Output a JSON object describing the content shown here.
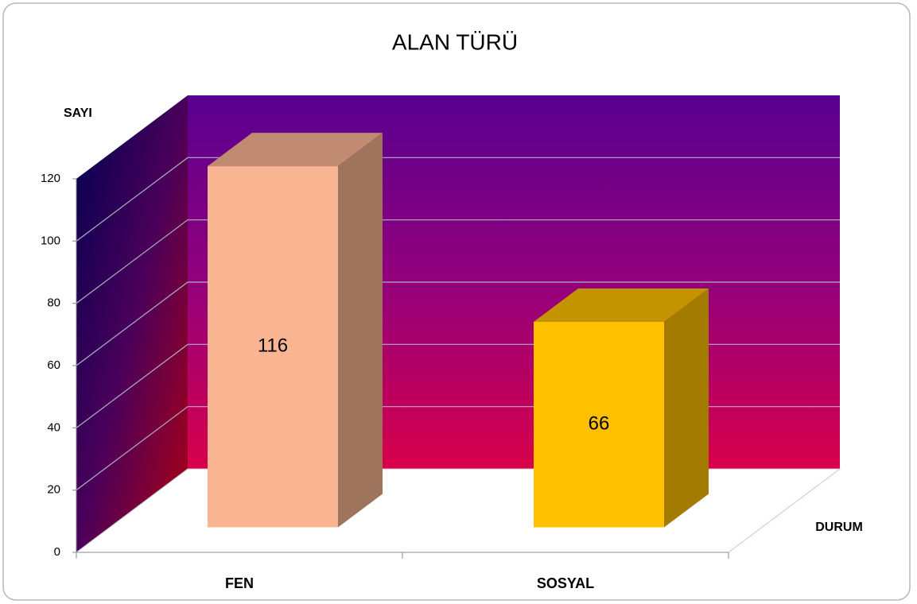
{
  "chart_data": {
    "type": "bar",
    "title": "ALAN TÜRÜ",
    "y_label": "SAYI",
    "x_label": "DURUM",
    "categories": [
      "FEN",
      "SOSYAL"
    ],
    "values": [
      116,
      66
    ],
    "colors": [
      "#f9b592",
      "#ffc000"
    ],
    "ylim": [
      0,
      120
    ],
    "yticks": [
      0,
      20,
      40,
      60,
      80,
      100,
      120
    ],
    "grid": true
  }
}
